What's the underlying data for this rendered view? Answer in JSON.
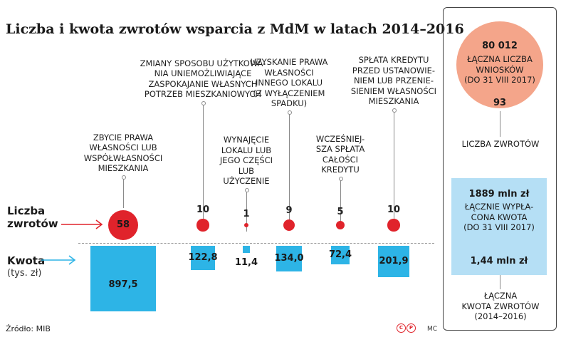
{
  "chart_data": {
    "type": "bar",
    "title": "Liczba i kwota zwrotów wsparcia z MdM w latach 2014–2016",
    "categories": [
      "Zbycie prawa własności lub współwłasności mieszkania",
      "Zmiany sposobu użytkowania uniemożliwiające zaspokajanie własnych potrzeb mieszkaniowych",
      "Wynajęcie lokalu lub jego części lub użyczenie",
      "Uzyskanie prawa własności innego lokalu (z wyłączeniem spadku)",
      "Wcześniejsza spłata całości kredytu",
      "Spłata kredytu przed ustanowieniem lub przeniesieniem własności mieszkania"
    ],
    "category_label_lines": [
      [
        "ZBYCIE PRAWA",
        "WŁASNOŚCI LUB",
        "WSPÓŁWŁASNOŚCI",
        "MIESZKANIA"
      ],
      [
        "ZMIANY SPOSOBU UŻYTKOWA-",
        "NIA UNIEMOŻLIWIAJĄCE",
        "ZASPOKAJANIE WŁASNYCH",
        "POTRZEB MIESZKANIOWYCH"
      ],
      [
        "WYNAJĘCIE",
        "LOKALU LUB",
        "JEGO CZĘŚCI",
        "LUB",
        "UŻYCZENIE"
      ],
      [
        "UZYSKANIE PRAWA",
        "WŁASNOŚCI",
        "INNEGO LOKALU",
        "(Z WYŁĄCZENIEM",
        "SPADKU)"
      ],
      [
        "WCZEŚNIEJ-",
        "SZA SPŁATA",
        "CAŁOŚCI",
        "KREDYTU"
      ],
      [
        "SPŁATA KREDYTU",
        "PRZED USTANOWIE-",
        "NIEM LUB PRZENIE-",
        "SIENIEM WŁASNOŚCI",
        "MIESZKANIA"
      ]
    ],
    "series": [
      {
        "name": "Liczba zwrotów",
        "values": [
          58,
          10,
          1,
          9,
          5,
          10
        ],
        "labels": [
          "58",
          "10",
          "1",
          "9",
          "5",
          "10"
        ]
      },
      {
        "name": "Kwota (tys. zł)",
        "values": [
          897.5,
          122.8,
          11.4,
          134.0,
          72.4,
          201.9
        ],
        "labels": [
          "897,5",
          "122,8",
          "11,4",
          "134,0",
          "72,4",
          "201,9"
        ]
      }
    ]
  },
  "legend": {
    "count_label_lines": [
      "Liczba",
      "zwrotów"
    ],
    "amount_label": "Kwota",
    "amount_unit": "(tys. zł)"
  },
  "panel": {
    "applications_value": "80 012",
    "applications_lines": [
      "ŁĄCZNA LICZBA",
      "WNIOSKÓW",
      "(DO 31 VIII 2017)"
    ],
    "returns_count": "93",
    "returns_count_label": "LICZBA ZWROTÓW",
    "payout_value": "1889 mln zł",
    "payout_lines": [
      "ŁĄCZNIE WYPŁA-",
      "CONA KWOTA",
      "(DO 31 VIII 2017)"
    ],
    "returns_amount": "1,44 mln zł",
    "returns_amount_lines": [
      "ŁĄCZNA",
      "KWOTA ZWROTÓW",
      "(2014–2016)"
    ]
  },
  "footer": {
    "source": "Źródło: MIB",
    "author": "MC",
    "copyright_c": "C",
    "copyright_p": "P"
  },
  "colors": {
    "dot": "#e0232b",
    "bar": "#2db4e6",
    "panel_circle": "#f4a58a",
    "panel_box": "#b5dff5"
  }
}
